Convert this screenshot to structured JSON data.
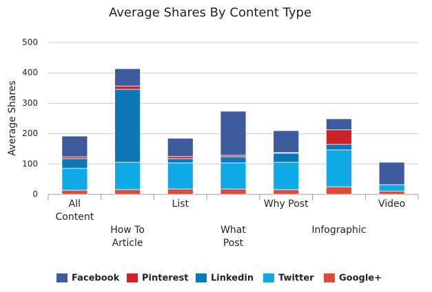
{
  "chart_data": {
    "type": "stacked-bar",
    "title": "Average Shares By Content Type",
    "y_label": "Average Shares",
    "categories": [
      "All Content",
      "How To Article",
      "List",
      "What Post",
      "Why Post",
      "Infographic",
      "Video"
    ],
    "series": [
      {
        "name": "Facebook",
        "color": "#3d5a9c",
        "values": [
          68,
          57,
          60,
          145,
          72,
          36,
          74
        ]
      },
      {
        "name": "Pinterest",
        "color": "#cc2229",
        "values": [
          6,
          11,
          7,
          5,
          2,
          48,
          0
        ]
      },
      {
        "name": "Linkedin",
        "color": "#0d77b7",
        "values": [
          32,
          240,
          14,
          20,
          30,
          18,
          0
        ]
      },
      {
        "name": "Twitter",
        "color": "#0fa9e6",
        "values": [
          72,
          90,
          86,
          86,
          90,
          122,
          21
        ]
      },
      {
        "name": "Google+",
        "color": "#dc4a38",
        "values": [
          14,
          16,
          18,
          18,
          16,
          25,
          11
        ]
      }
    ],
    "ylim": [
      0,
      500
    ],
    "yticks": [
      0,
      100,
      200,
      300,
      400,
      500
    ],
    "grid": true
  }
}
